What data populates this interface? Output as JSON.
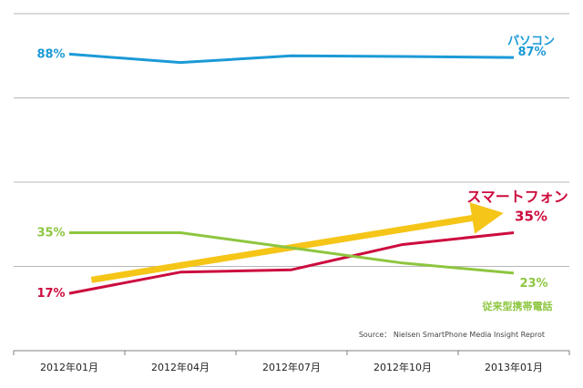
{
  "chart_data": {
    "type": "line",
    "x": [
      "2012年01月",
      "2012年04月",
      "2012年07月",
      "2012年10月",
      "2013年01月"
    ],
    "ylim": [
      0,
      100
    ],
    "grid": true,
    "series": [
      {
        "name": "パソコン",
        "values": [
          88,
          85.5,
          87.5,
          87.3,
          87
        ],
        "color": "#1b9ad6",
        "start_label": "88%",
        "end_label": "87%",
        "label_position": "top-right"
      },
      {
        "name": "スマートフォン",
        "values": [
          17,
          23.3,
          24,
          31.5,
          35
        ],
        "color": "#cc0c3e",
        "start_label": "17%",
        "end_label": "35%",
        "label_position": "right"
      },
      {
        "name": "従来型携帯電話",
        "values": [
          35,
          35,
          30.5,
          26,
          23
        ],
        "color": "#8dc63f",
        "start_label": "35%",
        "end_label": "23%",
        "label_position": "bottom-right"
      }
    ],
    "annotations": [
      {
        "kind": "trend-arrow",
        "color": "#f5c518",
        "from": [
          0.2,
          21
        ],
        "to": [
          3.75,
          40
        ]
      }
    ],
    "source": "Source： Nielsen SmartPhone Media Insight Reprot"
  }
}
